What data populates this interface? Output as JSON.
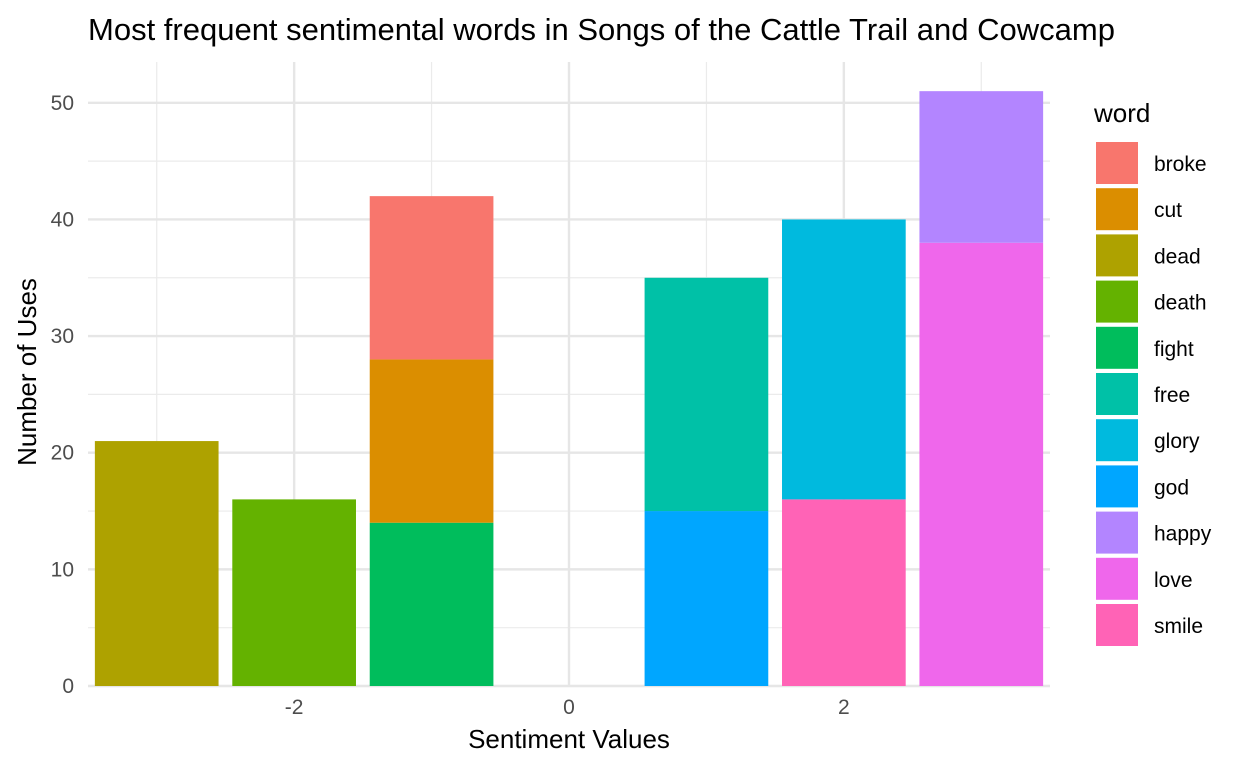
{
  "chart_data": {
    "type": "bar",
    "stacked": true,
    "title": "Most frequent sentimental words in Songs of the Cattle Trail and Cowcamp",
    "xlabel": "Sentiment Values",
    "ylabel": "Number of Uses",
    "xlim": [
      -3.5,
      3.5
    ],
    "ylim": [
      0,
      53.5
    ],
    "x_ticks": [
      -2,
      0,
      2
    ],
    "x_tick_labels": [
      "-2",
      "0",
      "2"
    ],
    "y_ticks": [
      0,
      10,
      20,
      30,
      40,
      50
    ],
    "y_tick_labels": [
      "0",
      "10",
      "20",
      "30",
      "40",
      "50"
    ],
    "grid": true,
    "legend_title": "word",
    "legend_position": "right",
    "legend": [
      {
        "word": "broke",
        "color": "#F8766D"
      },
      {
        "word": "cut",
        "color": "#DB8E00"
      },
      {
        "word": "dead",
        "color": "#AEA200"
      },
      {
        "word": "death",
        "color": "#64B200"
      },
      {
        "word": "fight",
        "color": "#00BD5C"
      },
      {
        "word": "free",
        "color": "#00C1A7"
      },
      {
        "word": "glory",
        "color": "#00BADE"
      },
      {
        "word": "god",
        "color": "#00A6FF"
      },
      {
        "word": "happy",
        "color": "#B385FF"
      },
      {
        "word": "love",
        "color": "#EF67EB"
      },
      {
        "word": "smile",
        "color": "#FF63B6"
      }
    ],
    "bars": [
      {
        "x": -3,
        "stack": [
          {
            "word": "dead",
            "value": 21
          }
        ]
      },
      {
        "x": -2,
        "stack": [
          {
            "word": "death",
            "value": 16
          }
        ]
      },
      {
        "x": -1,
        "stack": [
          {
            "word": "fight",
            "value": 14
          },
          {
            "word": "cut",
            "value": 14
          },
          {
            "word": "broke",
            "value": 14
          }
        ]
      },
      {
        "x": 1,
        "stack": [
          {
            "word": "god",
            "value": 15
          },
          {
            "word": "free",
            "value": 20
          }
        ]
      },
      {
        "x": 2,
        "stack": [
          {
            "word": "smile",
            "value": 16
          },
          {
            "word": "glory",
            "value": 24
          }
        ]
      },
      {
        "x": 3,
        "stack": [
          {
            "word": "love",
            "value": 38
          },
          {
            "word": "happy",
            "value": 13
          }
        ]
      }
    ]
  }
}
